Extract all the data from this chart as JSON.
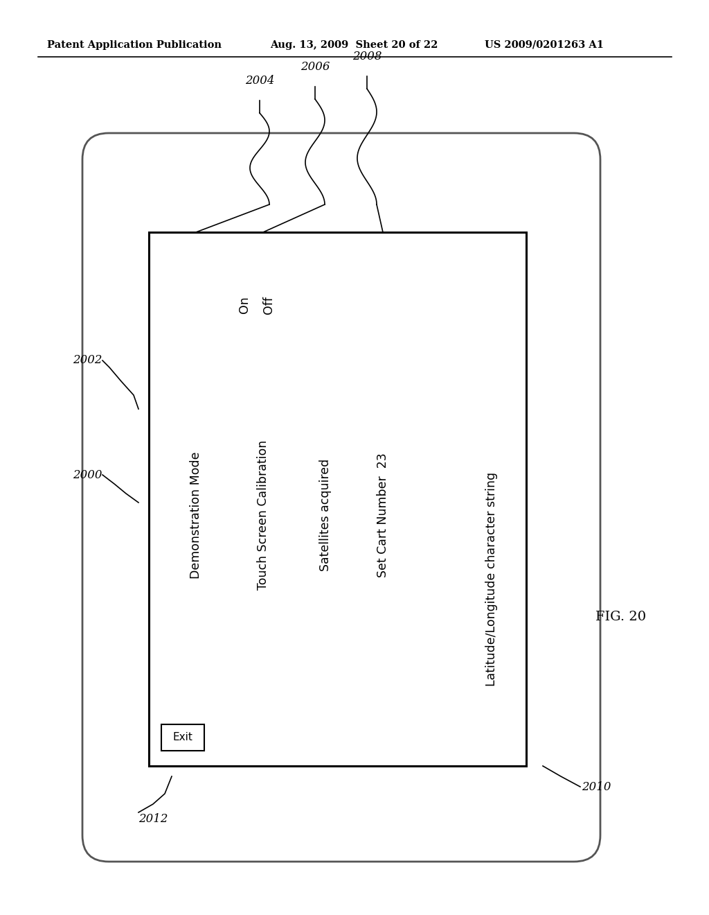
{
  "bg_color": "#ffffff",
  "header_left": "Patent Application Publication",
  "header_center": "Aug. 13, 2009  Sheet 20 of 22",
  "header_right": "US 2009/0201263 A1",
  "fig_label": "FIG. 20",
  "device_label": "2000",
  "outer_frame_label": "2002",
  "inner_frame_label": "2010",
  "exit_button_label": "2012",
  "label_2004": "2004",
  "label_2006": "2006",
  "label_2008": "2008",
  "screen_texts": [
    "Demonstration Mode",
    "Touch Screen Calibration",
    "Satellites acquired",
    "Set Cart Number  23"
  ],
  "on_off_texts": [
    "On",
    "Off"
  ],
  "lat_lon_text": "Latitude/Longitude character string",
  "exit_text": "Exit"
}
